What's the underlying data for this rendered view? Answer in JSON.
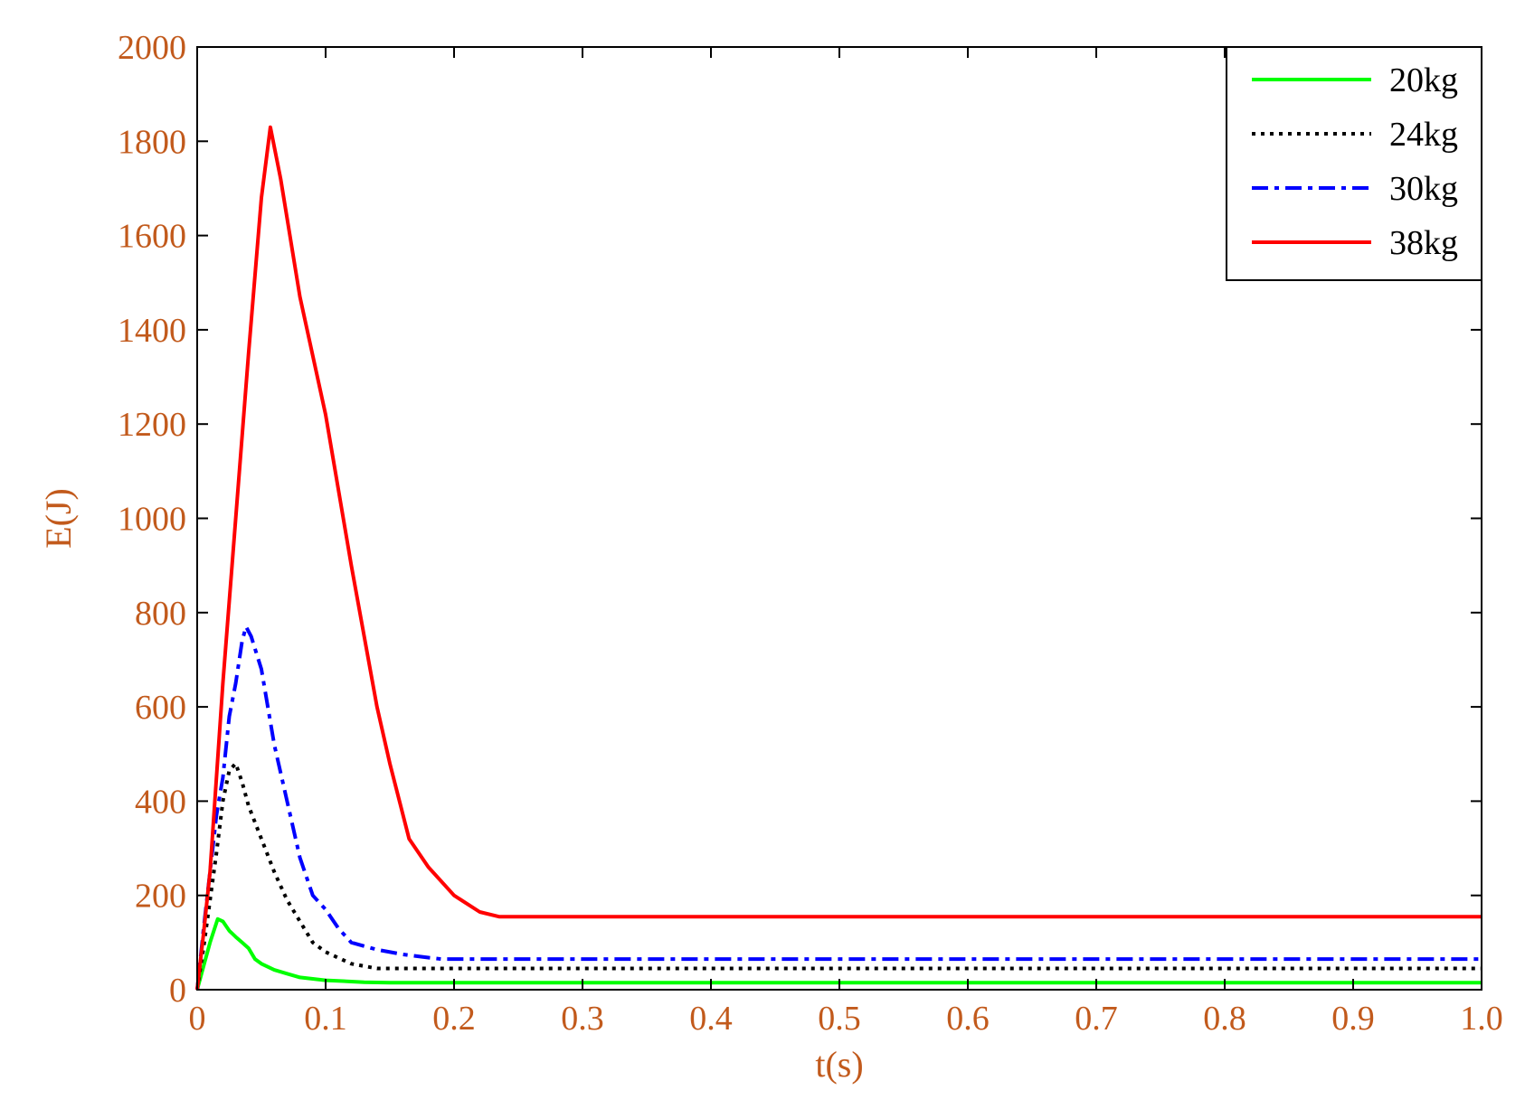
{
  "chart_data": {
    "type": "line",
    "title": "",
    "xlabel": "t(s)",
    "ylabel": "E(J)",
    "xlim": [
      0,
      1.0
    ],
    "ylim": [
      0,
      2000
    ],
    "x_ticks": [
      0,
      0.1,
      0.2,
      0.3,
      0.4,
      0.5,
      0.6,
      0.7,
      0.8,
      0.9,
      1.0
    ],
    "x_tick_labels": [
      "0",
      "0.1",
      "0.2",
      "0.3",
      "0.4",
      "0.5",
      "0.6",
      "0.7",
      "0.8",
      "0.9",
      "1.0"
    ],
    "y_ticks": [
      0,
      200,
      400,
      600,
      800,
      1000,
      1200,
      1400,
      1600,
      1800,
      2000
    ],
    "y_tick_labels": [
      "0",
      "200",
      "400",
      "600",
      "800",
      "1000",
      "1200",
      "1400",
      "1600",
      "1800",
      "2000"
    ],
    "grid": false,
    "legend_position": "top-right",
    "colors": {
      "axis_text": "#c25a1c",
      "frame": "#000000"
    },
    "series": [
      {
        "name": "20kg",
        "color": "#00ff00",
        "style": "solid",
        "points": [
          [
            0,
            0
          ],
          [
            0.005,
            50
          ],
          [
            0.01,
            100
          ],
          [
            0.016,
            150
          ],
          [
            0.02,
            145
          ],
          [
            0.025,
            125
          ],
          [
            0.03,
            112
          ],
          [
            0.035,
            100
          ],
          [
            0.04,
            88
          ],
          [
            0.045,
            65
          ],
          [
            0.05,
            55
          ],
          [
            0.06,
            42
          ],
          [
            0.07,
            34
          ],
          [
            0.08,
            26
          ],
          [
            0.1,
            20
          ],
          [
            0.13,
            16
          ],
          [
            0.15,
            15
          ],
          [
            1.0,
            15
          ]
        ]
      },
      {
        "name": "24kg",
        "color": "#000000",
        "style": "dotted",
        "points": [
          [
            0,
            0
          ],
          [
            0.005,
            90
          ],
          [
            0.01,
            190
          ],
          [
            0.015,
            290
          ],
          [
            0.02,
            400
          ],
          [
            0.025,
            465
          ],
          [
            0.03,
            480
          ],
          [
            0.035,
            440
          ],
          [
            0.04,
            390
          ],
          [
            0.05,
            320
          ],
          [
            0.06,
            250
          ],
          [
            0.07,
            190
          ],
          [
            0.08,
            145
          ],
          [
            0.09,
            100
          ],
          [
            0.1,
            80
          ],
          [
            0.12,
            55
          ],
          [
            0.14,
            45
          ],
          [
            1.0,
            45
          ]
        ]
      },
      {
        "name": "30kg",
        "color": "#0000ff",
        "style": "dashdot",
        "points": [
          [
            0,
            0
          ],
          [
            0.005,
            130
          ],
          [
            0.01,
            250
          ],
          [
            0.015,
            370
          ],
          [
            0.02,
            450
          ],
          [
            0.025,
            580
          ],
          [
            0.03,
            650
          ],
          [
            0.035,
            740
          ],
          [
            0.038,
            770
          ],
          [
            0.042,
            750
          ],
          [
            0.05,
            680
          ],
          [
            0.06,
            520
          ],
          [
            0.07,
            400
          ],
          [
            0.08,
            280
          ],
          [
            0.09,
            200
          ],
          [
            0.1,
            170
          ],
          [
            0.11,
            130
          ],
          [
            0.12,
            100
          ],
          [
            0.14,
            85
          ],
          [
            0.16,
            75
          ],
          [
            0.18,
            68
          ],
          [
            0.19,
            65
          ],
          [
            1.0,
            65
          ]
        ]
      },
      {
        "name": "38kg",
        "color": "#ff0000",
        "style": "solid",
        "points": [
          [
            0,
            0
          ],
          [
            0.005,
            120
          ],
          [
            0.01,
            250
          ],
          [
            0.02,
            650
          ],
          [
            0.03,
            1000
          ],
          [
            0.04,
            1350
          ],
          [
            0.05,
            1680
          ],
          [
            0.057,
            1830
          ],
          [
            0.065,
            1720
          ],
          [
            0.08,
            1470
          ],
          [
            0.1,
            1220
          ],
          [
            0.12,
            900
          ],
          [
            0.14,
            600
          ],
          [
            0.15,
            480
          ],
          [
            0.165,
            320
          ],
          [
            0.18,
            260
          ],
          [
            0.2,
            200
          ],
          [
            0.22,
            165
          ],
          [
            0.235,
            155
          ],
          [
            0.25,
            155
          ],
          [
            1.0,
            155
          ]
        ]
      }
    ]
  }
}
